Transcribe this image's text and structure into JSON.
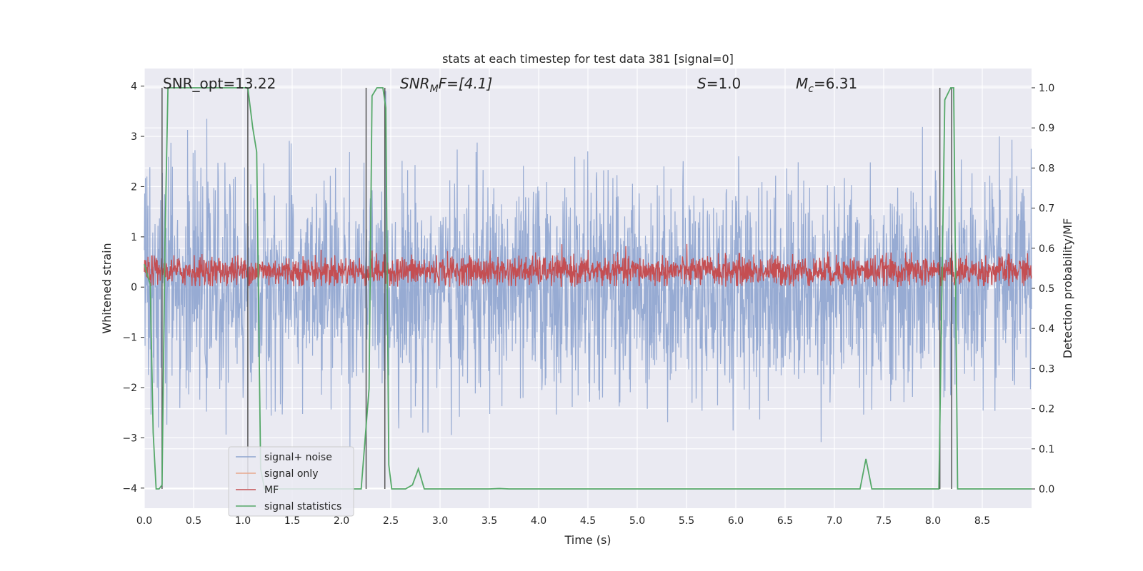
{
  "chart_data": {
    "type": "line",
    "title": "stats at each timestep for test data 381 [signal=0]",
    "xlabel": "Time (s)",
    "ylabel": "Whitened strain",
    "ylabel_right": "Detection probability/MF",
    "xlim": [
      0,
      9.0
    ],
    "ylim": [
      -4.4,
      4.35
    ],
    "ylim_right": [
      -0.048,
      1.048
    ],
    "x_ticks": [
      0.0,
      0.5,
      1.0,
      1.5,
      2.0,
      2.5,
      3.0,
      3.5,
      4.0,
      4.5,
      5.0,
      5.5,
      6.0,
      6.5,
      7.0,
      7.5,
      8.0,
      8.5
    ],
    "x_tick_labels": [
      "0.0",
      "0.5",
      "1.0",
      "1.5",
      "2.0",
      "2.5",
      "3.0",
      "3.5",
      "4.0",
      "4.5",
      "5.0",
      "5.5",
      "6.0",
      "6.5",
      "7.0",
      "7.5",
      "8.0",
      "8.5"
    ],
    "y_ticks": [
      4,
      3,
      2,
      1,
      0,
      -1,
      -2,
      -3,
      -4
    ],
    "y_tick_labels": [
      "4",
      "3",
      "2",
      "1",
      "0",
      "−1",
      "−2",
      "−3",
      "−4"
    ],
    "y_ticks_right": [
      1.0,
      0.9,
      0.8,
      0.7,
      0.6,
      0.5,
      0.4,
      0.3,
      0.2,
      0.1,
      0.0
    ],
    "y_tick_labels_right": [
      "1.0",
      "0.9",
      "0.8",
      "0.7",
      "0.6",
      "0.5",
      "0.4",
      "0.3",
      "0.2",
      "0.1",
      "0.0"
    ],
    "grid": true,
    "legend": {
      "placement": "lower-left",
      "entries": [
        {
          "label": "signal+ noise",
          "color": "#8ea4cf"
        },
        {
          "label": "signal only",
          "color": "#e8a88c"
        },
        {
          "label": "MF",
          "color": "#c44e52"
        },
        {
          "label": "signal statistics",
          "color": "#55a868"
        }
      ]
    },
    "annotations": {
      "snr_opt": "SNR_opt=13.22",
      "snr_mf_main": "SNR",
      "snr_mf_sub": "M",
      "snr_mf_rest": "F=[4.1]",
      "s_main": "S",
      "s_rest": "=1.0",
      "mc_main": "M",
      "mc_sub": "c",
      "mc_rest": "=6.31"
    },
    "colors": {
      "noise": "#8ea4cf",
      "signal_only": "#e8a88c",
      "mf": "#c44e52",
      "statistic": "#55a868",
      "vline": "#555555",
      "background": "#eaeaf2",
      "grid": "#ffffff"
    },
    "series": [
      {
        "name": "signal statistics",
        "axis": "right",
        "x": [
          0.0,
          0.06,
          0.09,
          0.12,
          0.15,
          0.18,
          0.21,
          0.24,
          0.26,
          0.3,
          0.5,
          0.8,
          1.05,
          1.1,
          1.14,
          1.18,
          1.22,
          1.5,
          2.2,
          2.28,
          2.31,
          2.36,
          2.42,
          2.45,
          2.48,
          2.51,
          2.56,
          2.6,
          2.65,
          2.72,
          2.78,
          2.84,
          2.9,
          3.2,
          3.5,
          3.6,
          3.7,
          4.0,
          5.0,
          6.0,
          7.0,
          7.26,
          7.32,
          7.38,
          7.5,
          8.0,
          8.06,
          8.12,
          8.18,
          8.21,
          8.25,
          8.3,
          8.4,
          9.0
        ],
        "y": [
          0.56,
          0.51,
          0.14,
          0.0,
          0.0,
          0.01,
          0.62,
          1.0,
          1.0,
          1.0,
          1.0,
          1.0,
          1.0,
          0.9,
          0.84,
          0.05,
          0.0,
          0.0,
          0.0,
          0.25,
          0.98,
          1.0,
          1.0,
          0.95,
          0.06,
          0.0,
          0.0,
          0.0,
          0.0,
          0.01,
          0.05,
          0.0,
          0.0,
          0.0,
          0.0,
          0.001,
          0.0,
          0.0,
          0.0,
          0.0,
          0.0,
          0.0,
          0.075,
          0.0,
          0.0,
          0.0,
          0.0,
          0.97,
          1.0,
          1.0,
          0.0,
          0.0,
          0.0,
          0.0
        ]
      }
    ],
    "vlines_x": [
      0.18,
      1.05,
      2.25,
      2.44,
      8.07,
      8.19
    ]
  }
}
